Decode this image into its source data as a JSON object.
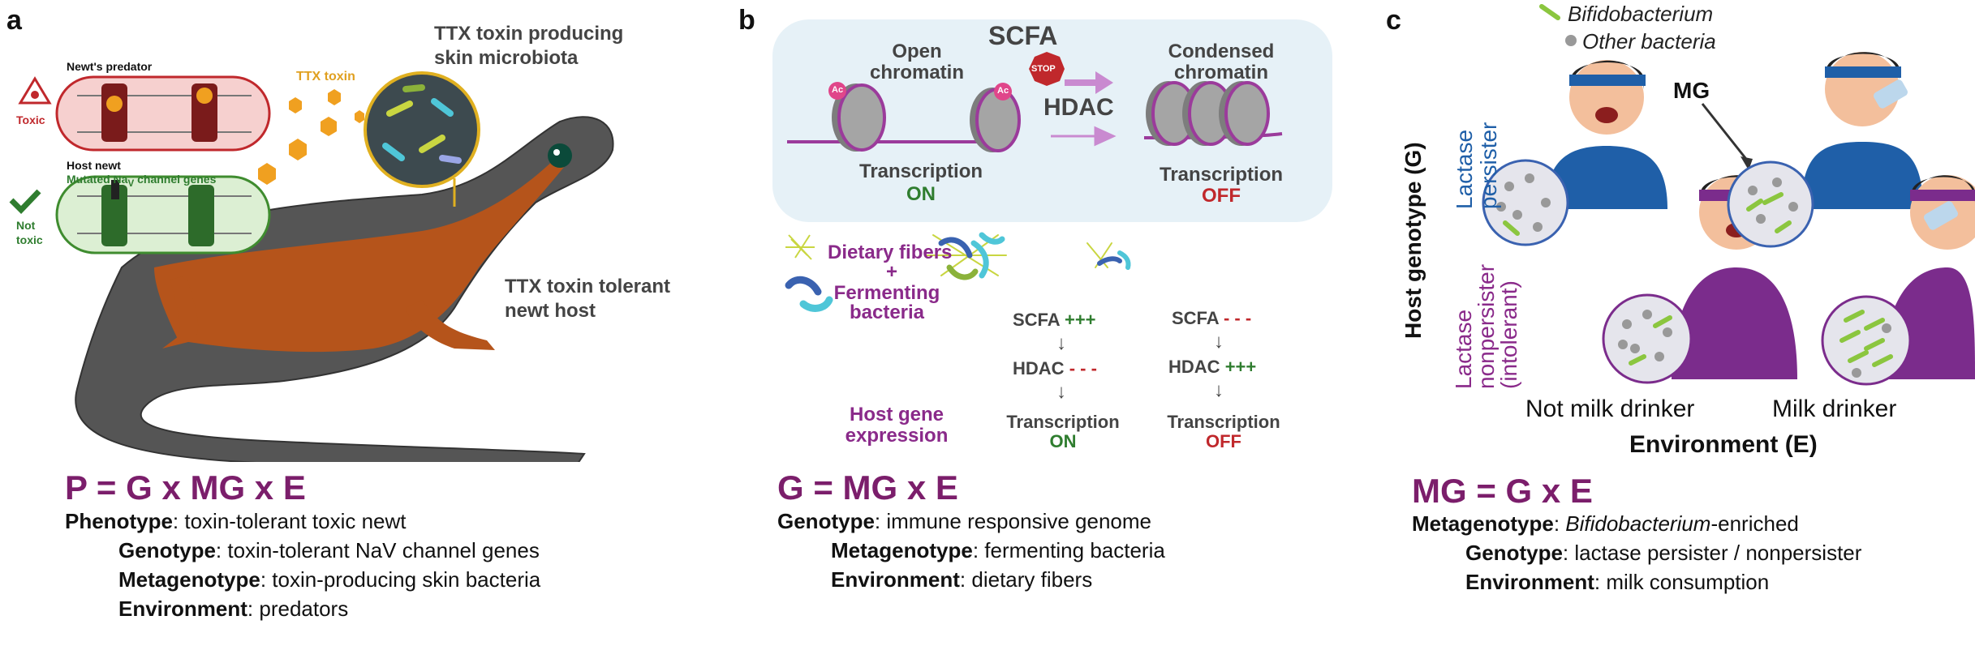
{
  "panel_a": {
    "label": "a",
    "newts_predator": "Newt's predator",
    "host_newt": "Host newt",
    "mutated_channel": "Mutated Na",
    "mutated_channel_sub": "V",
    "mutated_channel_tail": " channel genes",
    "toxic": "Toxic",
    "not_toxic_1": "Not",
    "not_toxic_2": "toxic",
    "ttx_toxin": "TTX toxin",
    "microbiota_1": "TTX toxin producing",
    "microbiota_2": "skin microbiota",
    "tolerant_1": "TTX toxin tolerant",
    "tolerant_2": "newt host",
    "equation": "P = G x MG x E",
    "lines": [
      {
        "term": "Phenotype",
        "text": ": toxin-tolerant toxic newt"
      },
      {
        "term": "Genotype",
        "text": ": toxin-tolerant NaV channel genes"
      },
      {
        "term": "Metagenotype",
        "text": ": toxin-producing skin bacteria"
      },
      {
        "term": "Environment",
        "text": ": predators"
      }
    ]
  },
  "panel_b": {
    "label": "b",
    "open_chromatin_1": "Open",
    "open_chromatin_2": "chromatin",
    "scfa": "SCFA",
    "stop": "STOP",
    "hdac": "HDAC",
    "condensed_1": "Condensed",
    "condensed_2": "chromatin",
    "ac": "Ac",
    "transcription": "Transcription",
    "on": "ON",
    "off": "OFF",
    "dietary_fibers": "Dietary fibers",
    "plus": "+",
    "fermenting_1": "Fermenting",
    "fermenting_2": "bacteria",
    "host_gene_1": "Host gene",
    "host_gene_2": "expression",
    "scfa_plus": "SCFA",
    "plus3": "+++",
    "minus3": "- - -",
    "hdac_small": "HDAC",
    "arrow": "↓",
    "equation": "G = MG x E",
    "lines": [
      {
        "term": "Genotype",
        "text": ": immune responsive genome"
      },
      {
        "term": "Metagenotype",
        "text": ": fermenting bacteria"
      },
      {
        "term": "Environment",
        "text": ": dietary fibers"
      }
    ]
  },
  "panel_c": {
    "label": "c",
    "legend_bifido": "Bifidobacterium",
    "legend_other": "Other bacteria",
    "mg": "MG",
    "host_genotype": "Host genotype (G)",
    "lactase_persister_1": "Lactase",
    "lactase_persister_2": "persister",
    "lactase_non_1": "Lactase",
    "lactase_non_2": "nonpersister",
    "lactase_non_3": "(intolerant)",
    "not_milk": "Not milk drinker",
    "milk": "Milk drinker",
    "environment": "Environment (E)",
    "equation": "MG = G x E",
    "line1_term": "Metagenotype",
    "line1_italic": "Bifidobacterium",
    "line1_text": "-enriched",
    "lines": [
      {
        "term": "Genotype",
        "text": ": lactase persister / nonpersister"
      },
      {
        "term": "Environment",
        "text": ": milk consumption"
      }
    ]
  },
  "colors": {
    "equation": "#7b1e6b",
    "on_green": "#2f7d2f",
    "off_red": "#c0282c",
    "purple": "#8a2a8a",
    "blue": "#1f5fa8"
  }
}
